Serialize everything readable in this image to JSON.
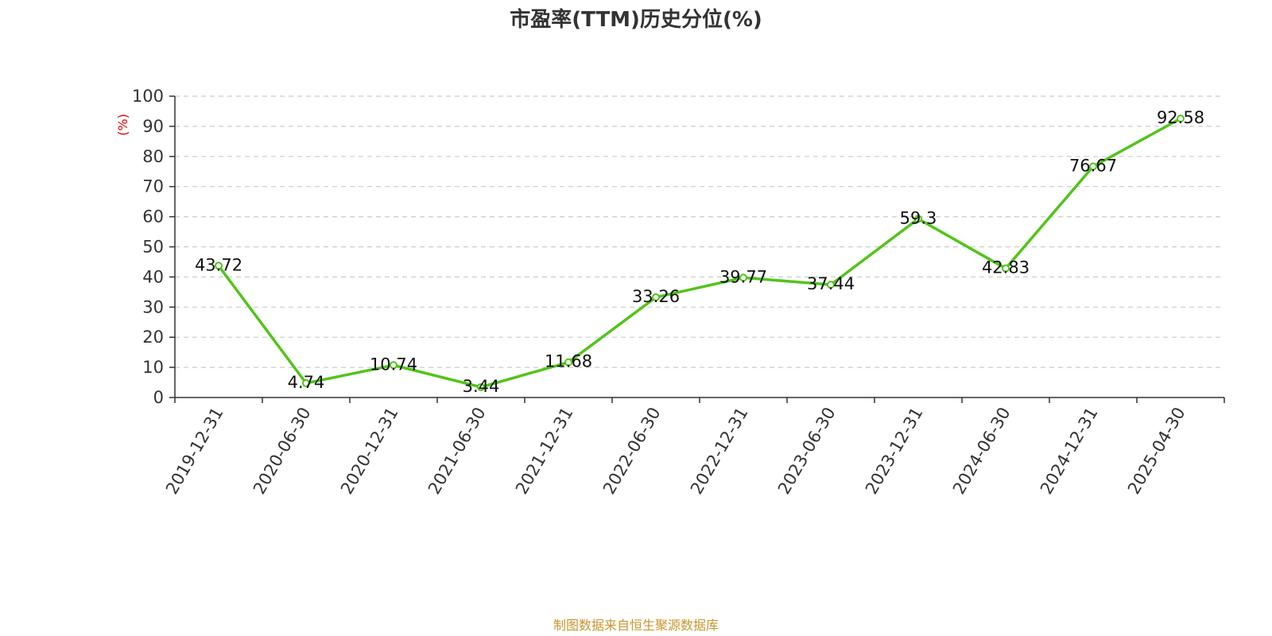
{
  "chart_data": {
    "type": "line",
    "title": "市盈率(TTM)历史分位(%)",
    "ylabel": "(%)",
    "xlabel": "",
    "ylim": [
      0,
      100
    ],
    "yticks": [
      0,
      10,
      20,
      30,
      40,
      50,
      60,
      70,
      80,
      90,
      100
    ],
    "grid": true,
    "categories": [
      "2019-12-31",
      "2020-06-30",
      "2020-12-31",
      "2021-06-30",
      "2021-12-31",
      "2022-06-30",
      "2022-12-31",
      "2023-06-30",
      "2023-12-31",
      "2024-06-30",
      "2024-12-31",
      "2025-04-30"
    ],
    "series": [
      {
        "values": [
          43.72,
          4.74,
          10.74,
          3.44,
          11.68,
          33.26,
          39.77,
          37.44,
          59.3,
          42.83,
          76.67,
          92.58
        ],
        "color": "#52c41a"
      }
    ],
    "source": "制图数据来自恒生聚源数据库",
    "colors": {
      "ylabel": "#e60000",
      "source": "#c8962e",
      "grid": "#cccccc",
      "axis": "#333333"
    }
  }
}
